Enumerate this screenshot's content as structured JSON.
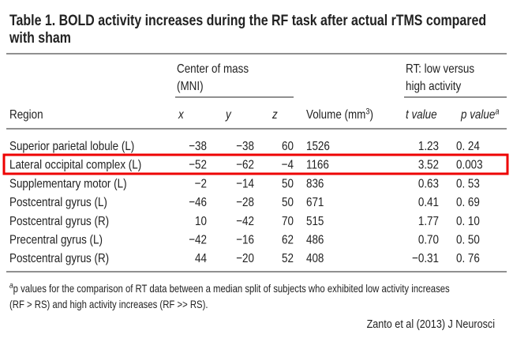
{
  "title": "Table 1. BOLD activity increases during the RF task after actual rTMS compared with sham",
  "table": {
    "group_headers": {
      "center_of_mass": [
        "Center of mass",
        "(MNI)"
      ],
      "rt": [
        "RT: low versus",
        "high activity"
      ]
    },
    "columns": {
      "region": "Region",
      "x": "x",
      "y": "y",
      "z": "z",
      "volume": "Volume (mm",
      "volume_sup": "3",
      "volume_end": ")",
      "t": "t value",
      "p": "p value",
      "p_sup": "a"
    },
    "rows": [
      [
        "Superior parietal lobule (L)",
        "−38",
        "−38",
        "60",
        "1526",
        "1.23",
        "0. 24"
      ],
      [
        "Lateral occipital complex (L)",
        "−52",
        "−62",
        "−4",
        "1166",
        "3.52",
        "0.003"
      ],
      [
        "Supplementary motor (L)",
        "−2",
        "−14",
        "50",
        "836",
        "0.63",
        "0. 53"
      ],
      [
        "Postcentral gyrus (L)",
        "−46",
        "−28",
        "50",
        "671",
        "0.41",
        "0. 69"
      ],
      [
        "Postcentral gyrus (R)",
        "10",
        "−42",
        "70",
        "515",
        "1.77",
        "0. 10"
      ],
      [
        "Precentral gyrus (L)",
        "−42",
        "−16",
        "62",
        "486",
        "0.70",
        "0. 50"
      ],
      [
        "Postcentral gyrus (R)",
        "44",
        "−20",
        "52",
        "408",
        "−0.31",
        "0. 76"
      ]
    ],
    "footnote": {
      "mark": "a",
      "lines": [
        "p values for the comparison of RT data between a median split of subjects who exhibited low activity increases",
        "(RF > RS) and high activity increases (RF >> RS)."
      ]
    }
  },
  "citation": "Zanto et al (2013) J Neurosci"
}
